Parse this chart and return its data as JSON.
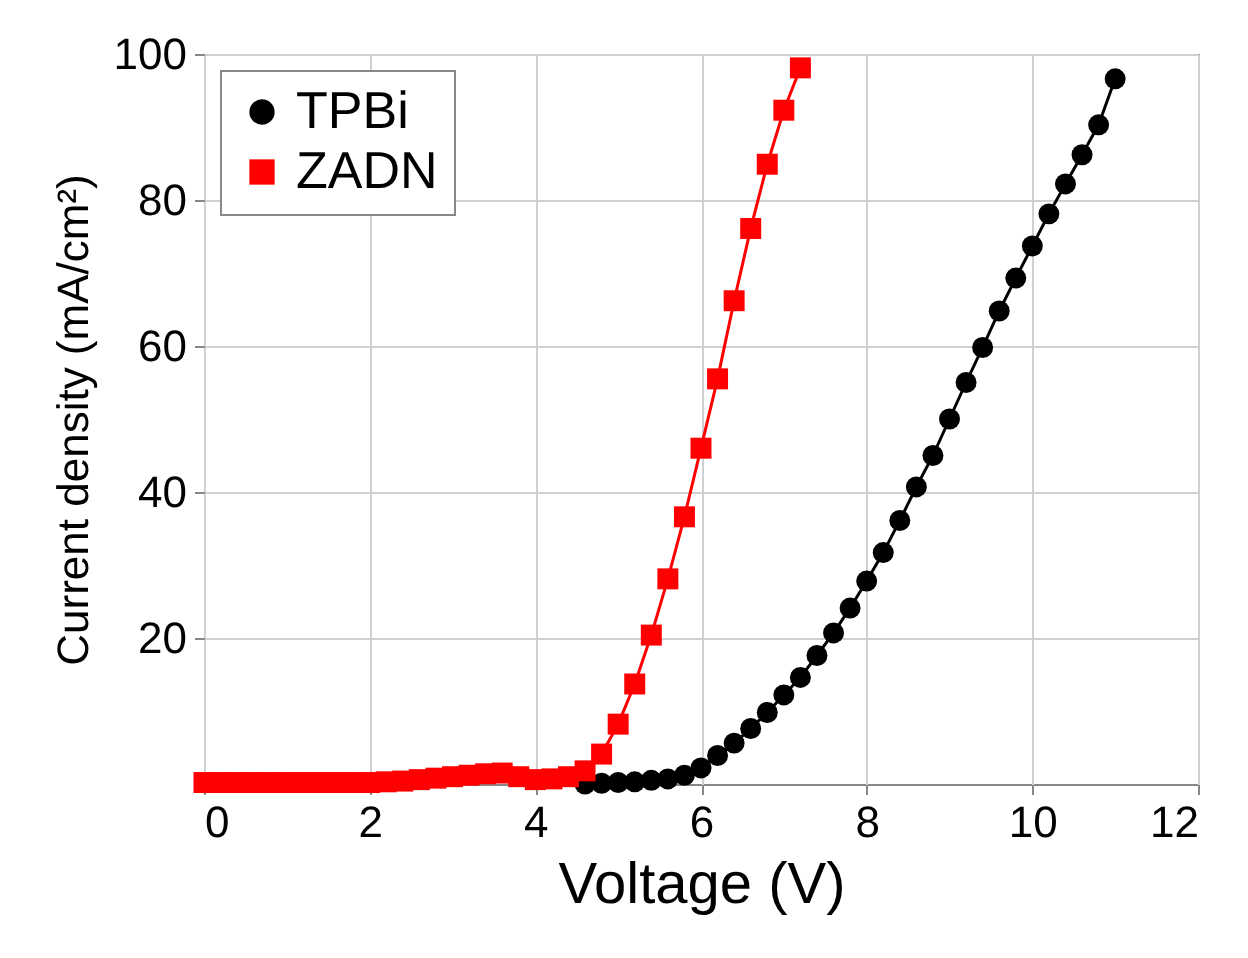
{
  "chart_data": {
    "type": "line",
    "xlabel": "Voltage (V)",
    "ylabel": "Current density (mA/cm²)",
    "xlim": [
      0,
      12
    ],
    "xticks": [
      0,
      2,
      4,
      6,
      8,
      10,
      12
    ],
    "ylim": [
      0,
      100
    ],
    "yticks": [
      20,
      40,
      60,
      80,
      100
    ],
    "grid": true,
    "legend": "top left",
    "series": [
      {
        "name": "TPBi",
        "color": "#000000",
        "marker": "circle",
        "x": [
          4.6,
          4.8,
          5.0,
          5.2,
          5.4,
          5.6,
          5.8,
          6.0,
          6.2,
          6.4,
          6.6,
          6.8,
          7.0,
          7.2,
          7.4,
          7.6,
          7.8,
          8.0,
          8.2,
          8.4,
          8.6,
          8.8,
          9.0,
          9.2,
          9.4,
          9.6,
          9.8,
          10.0,
          10.2,
          10.4,
          10.6,
          10.8,
          11.0
        ],
        "values": [
          0,
          0.1,
          0.2,
          0.3,
          0.5,
          0.7,
          1.2,
          2.2,
          3.9,
          5.6,
          7.6,
          9.8,
          12.2,
          14.6,
          17.6,
          20.7,
          24.1,
          27.8,
          31.7,
          36.1,
          40.7,
          45.0,
          50.0,
          55.0,
          59.8,
          64.8,
          69.3,
          73.7,
          78.1,
          82.2,
          86.2,
          90.3,
          96.6
        ]
      },
      {
        "name": "ZADN",
        "color": "#ff0000",
        "marker": "square",
        "x": [
          0,
          0.2,
          0.4,
          0.6,
          0.8,
          1.0,
          1.2,
          1.4,
          1.6,
          1.8,
          2.0,
          2.2,
          2.4,
          2.6,
          2.8,
          3.0,
          3.2,
          3.4,
          3.6,
          3.8,
          4.0,
          4.2,
          4.4,
          4.6,
          4.8,
          5.0,
          5.2,
          5.4,
          5.6,
          5.8,
          6.0,
          6.2,
          6.4,
          6.6,
          6.8,
          7.0,
          7.2
        ],
        "values": [
          0.2,
          0.2,
          0.2,
          0.2,
          0.2,
          0.2,
          0.2,
          0.2,
          0.2,
          0.2,
          0.2,
          0.3,
          0.4,
          0.6,
          0.8,
          1.0,
          1.2,
          1.4,
          1.5,
          1.0,
          0.6,
          0.7,
          1.0,
          1.8,
          4.1,
          8.2,
          13.7,
          20.4,
          28.1,
          36.6,
          46.0,
          55.5,
          66.2,
          76.1,
          84.9,
          92.3,
          98.1
        ]
      }
    ]
  }
}
